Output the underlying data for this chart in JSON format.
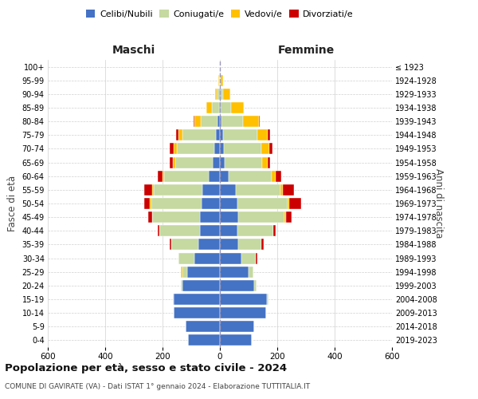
{
  "age_groups": [
    "0-4",
    "5-9",
    "10-14",
    "15-19",
    "20-24",
    "25-29",
    "30-34",
    "35-39",
    "40-44",
    "45-49",
    "50-54",
    "55-59",
    "60-64",
    "65-69",
    "70-74",
    "75-79",
    "80-84",
    "85-89",
    "90-94",
    "95-99",
    "100+"
  ],
  "birth_years": [
    "2019-2023",
    "2014-2018",
    "2009-2013",
    "2004-2008",
    "1999-2003",
    "1994-1998",
    "1989-1993",
    "1984-1988",
    "1979-1983",
    "1974-1978",
    "1969-1973",
    "1964-1968",
    "1959-1963",
    "1954-1958",
    "1949-1953",
    "1944-1948",
    "1939-1943",
    "1934-1938",
    "1929-1933",
    "1924-1928",
    "≤ 1923"
  ],
  "colors": {
    "celibi": "#4472c4",
    "coniugati": "#c5d9a0",
    "vedovi": "#ffc000",
    "divorziati": "#cc0000"
  },
  "maschi": {
    "celibi": [
      110,
      120,
      160,
      160,
      130,
      115,
      90,
      75,
      70,
      70,
      65,
      60,
      40,
      25,
      20,
      15,
      8,
      3,
      2,
      1,
      0
    ],
    "coniugati": [
      0,
      0,
      0,
      5,
      5,
      15,
      55,
      95,
      140,
      165,
      175,
      170,
      155,
      130,
      130,
      115,
      60,
      25,
      8,
      2,
      0
    ],
    "vedovi": [
      0,
      0,
      0,
      0,
      0,
      5,
      0,
      0,
      0,
      0,
      5,
      5,
      5,
      10,
      12,
      15,
      20,
      18,
      8,
      2,
      0
    ],
    "divorziati": [
      0,
      0,
      0,
      0,
      0,
      0,
      0,
      5,
      8,
      15,
      20,
      30,
      18,
      10,
      12,
      8,
      3,
      0,
      0,
      0,
      0
    ]
  },
  "femmine": {
    "celibi": [
      110,
      120,
      160,
      165,
      120,
      100,
      75,
      65,
      60,
      65,
      60,
      55,
      30,
      18,
      15,
      10,
      5,
      3,
      2,
      1,
      0
    ],
    "coniugati": [
      0,
      0,
      0,
      5,
      8,
      18,
      50,
      80,
      125,
      160,
      175,
      155,
      150,
      130,
      130,
      120,
      75,
      35,
      8,
      2,
      0
    ],
    "vedovi": [
      0,
      0,
      0,
      0,
      0,
      0,
      0,
      0,
      0,
      5,
      8,
      10,
      15,
      18,
      28,
      38,
      55,
      45,
      25,
      8,
      1
    ],
    "divorziati": [
      0,
      0,
      0,
      0,
      0,
      0,
      5,
      8,
      10,
      20,
      40,
      38,
      18,
      10,
      10,
      8,
      3,
      0,
      0,
      0,
      0
    ]
  },
  "title": "Popolazione per età, sesso e stato civile - 2024",
  "subtitle": "COMUNE DI GAVIRATE (VA) - Dati ISTAT 1° gennaio 2024 - Elaborazione TUTTITALIA.IT",
  "xlabel_left": "Maschi",
  "xlabel_right": "Femmine",
  "ylabel_left": "Fasce di età",
  "ylabel_right": "Anni di nascita",
  "xlim": 600,
  "legend_labels": [
    "Celibi/Nubili",
    "Coniugati/e",
    "Vedovi/e",
    "Divorziati/e"
  ],
  "background_color": "#ffffff"
}
